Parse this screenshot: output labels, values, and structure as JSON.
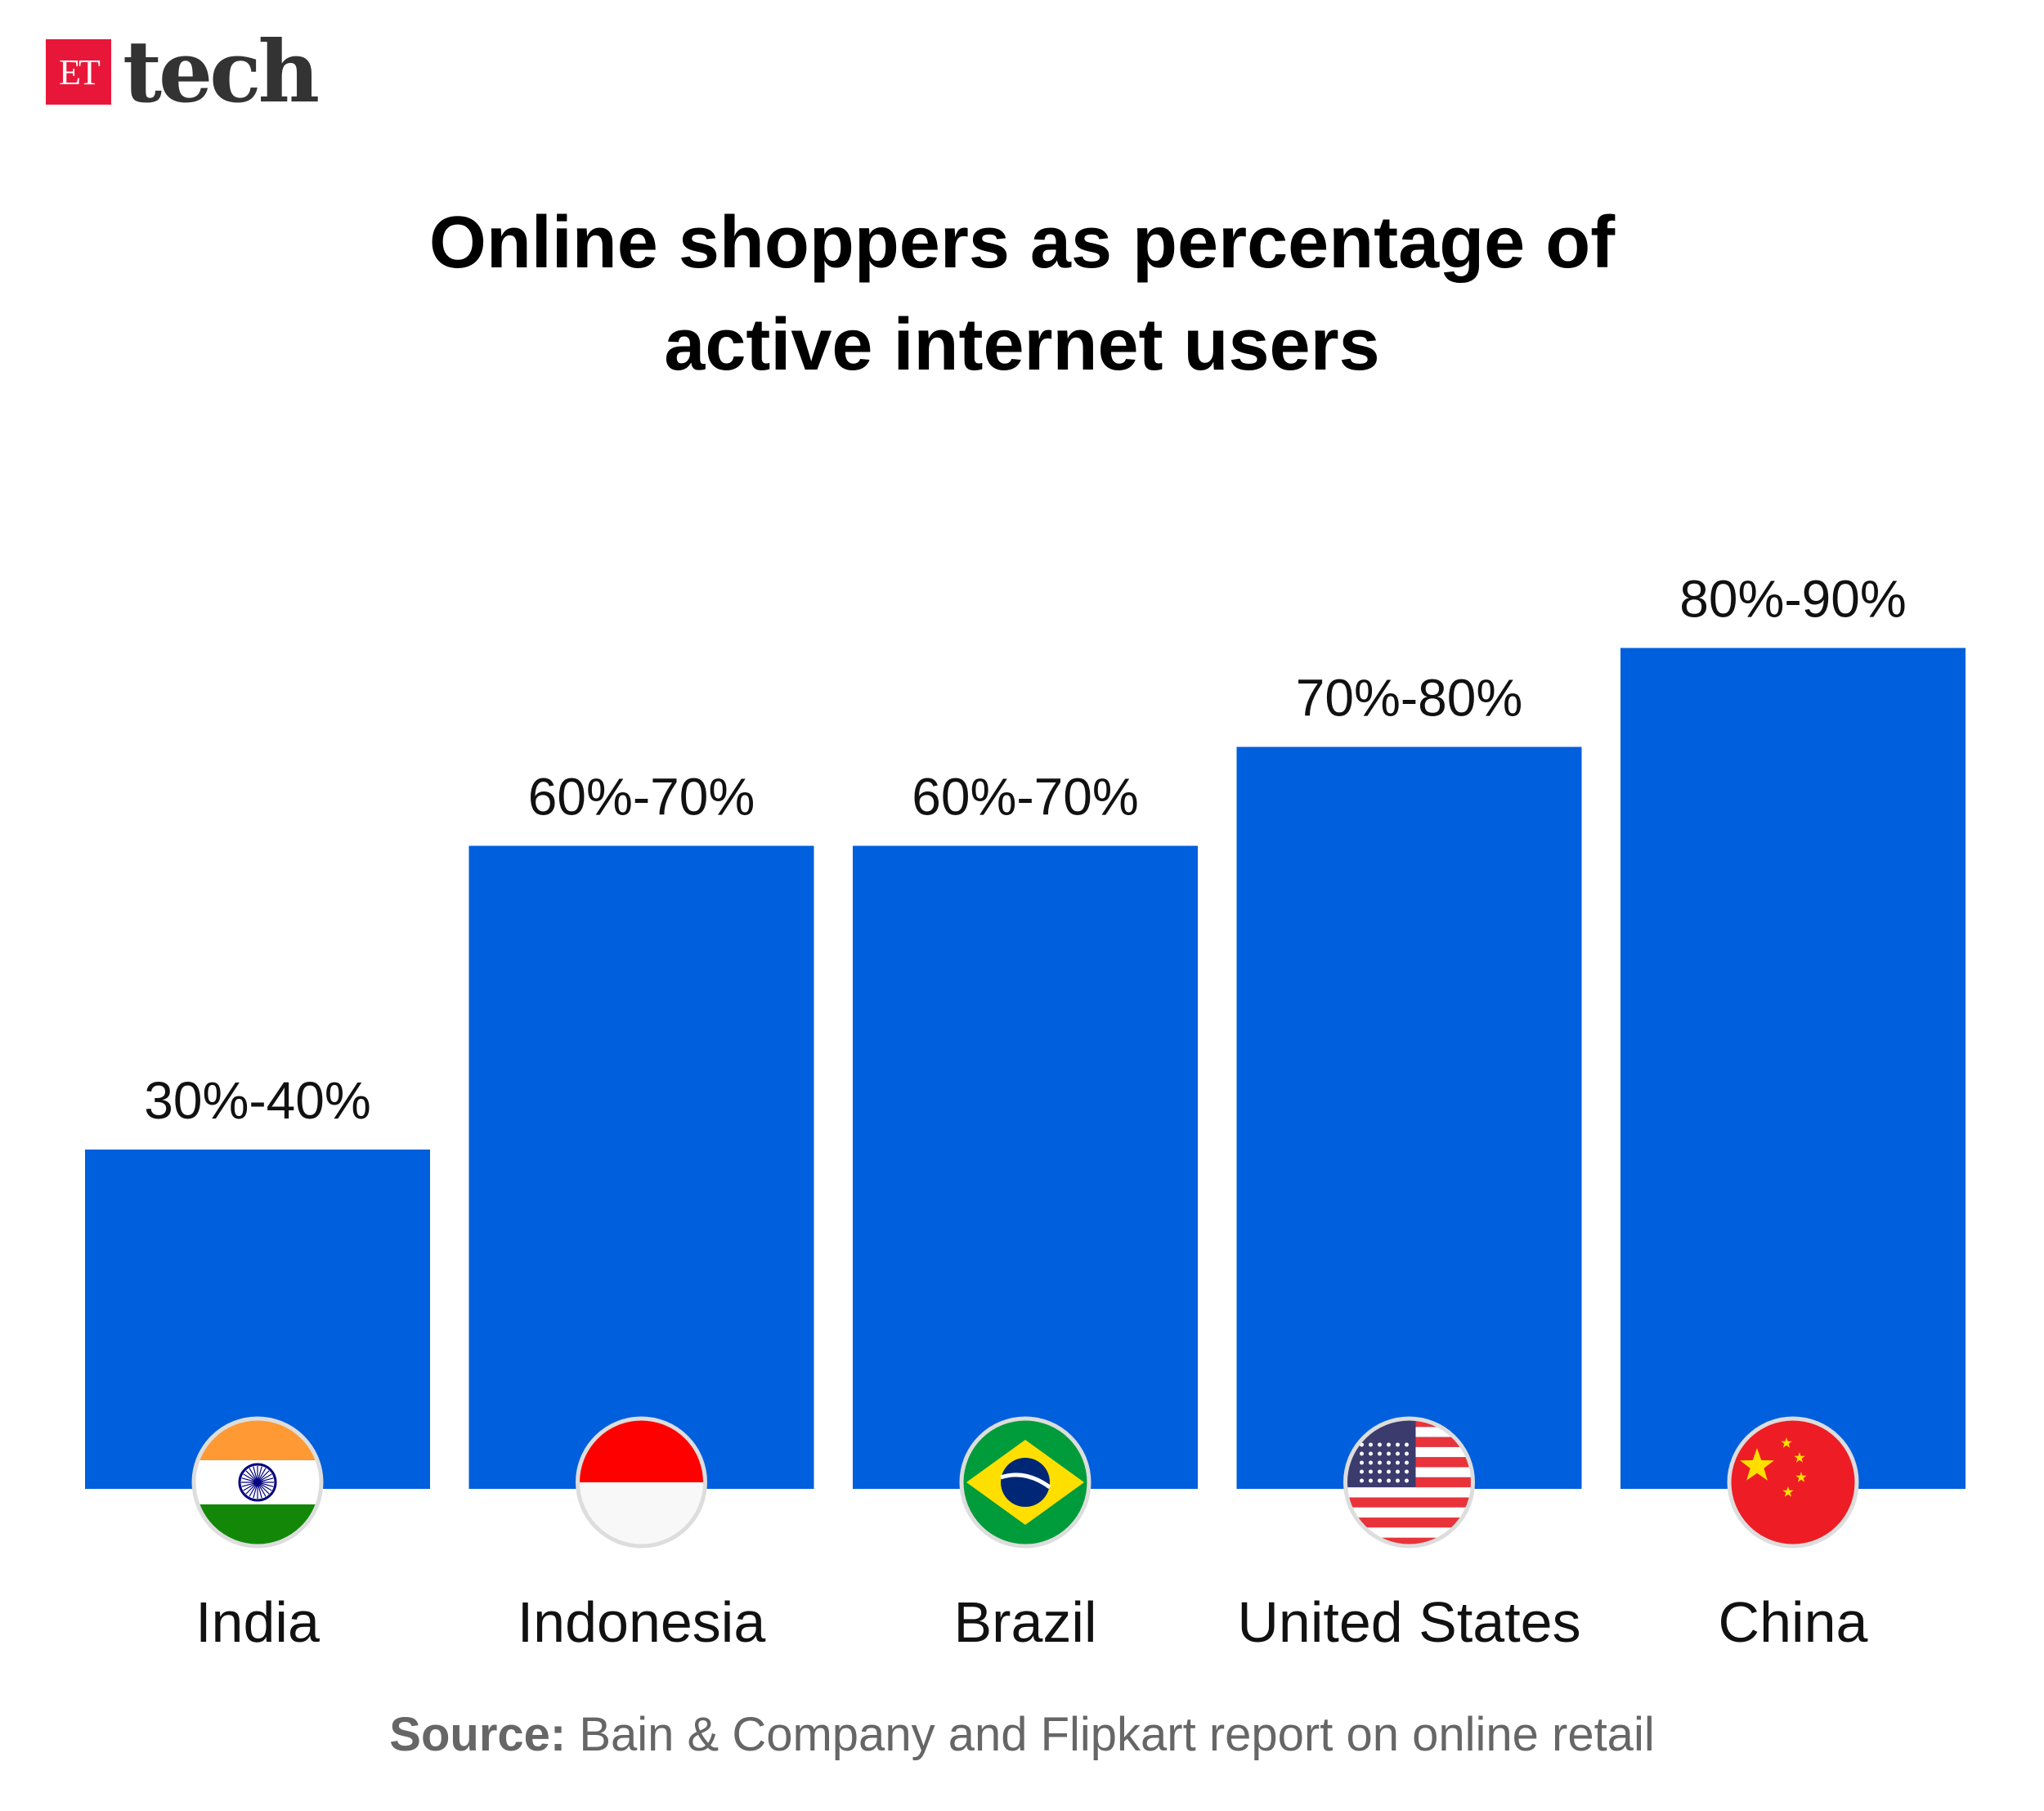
{
  "logo": {
    "et": "ET",
    "tech": "tech",
    "color": "#e8173a"
  },
  "chart_data": {
    "type": "bar",
    "title": "Online shoppers as percentage of active internet users",
    "title_lines": [
      "Online shoppers as percentage of",
      "active internet users"
    ],
    "categories": [
      "India",
      "Indonesia",
      "Brazil",
      "United States",
      "China"
    ],
    "ranges": [
      [
        30,
        40
      ],
      [
        60,
        70
      ],
      [
        60,
        70
      ],
      [
        70,
        80
      ],
      [
        80,
        90
      ]
    ],
    "labels": [
      "30%-40%",
      "60%-70%",
      "60%-70%",
      "70%-80%",
      "80%-90%"
    ],
    "flags": [
      "india-flag-icon",
      "indonesia-flag-icon",
      "brazil-flag-icon",
      "united-states-flag-icon",
      "china-flag-icon"
    ],
    "bar_color": "#005fdc",
    "grid": true,
    "xlabel": "",
    "ylabel": ""
  },
  "source": {
    "label": "Source:",
    "text": " Bain & Company and Flipkart report on online retail"
  }
}
